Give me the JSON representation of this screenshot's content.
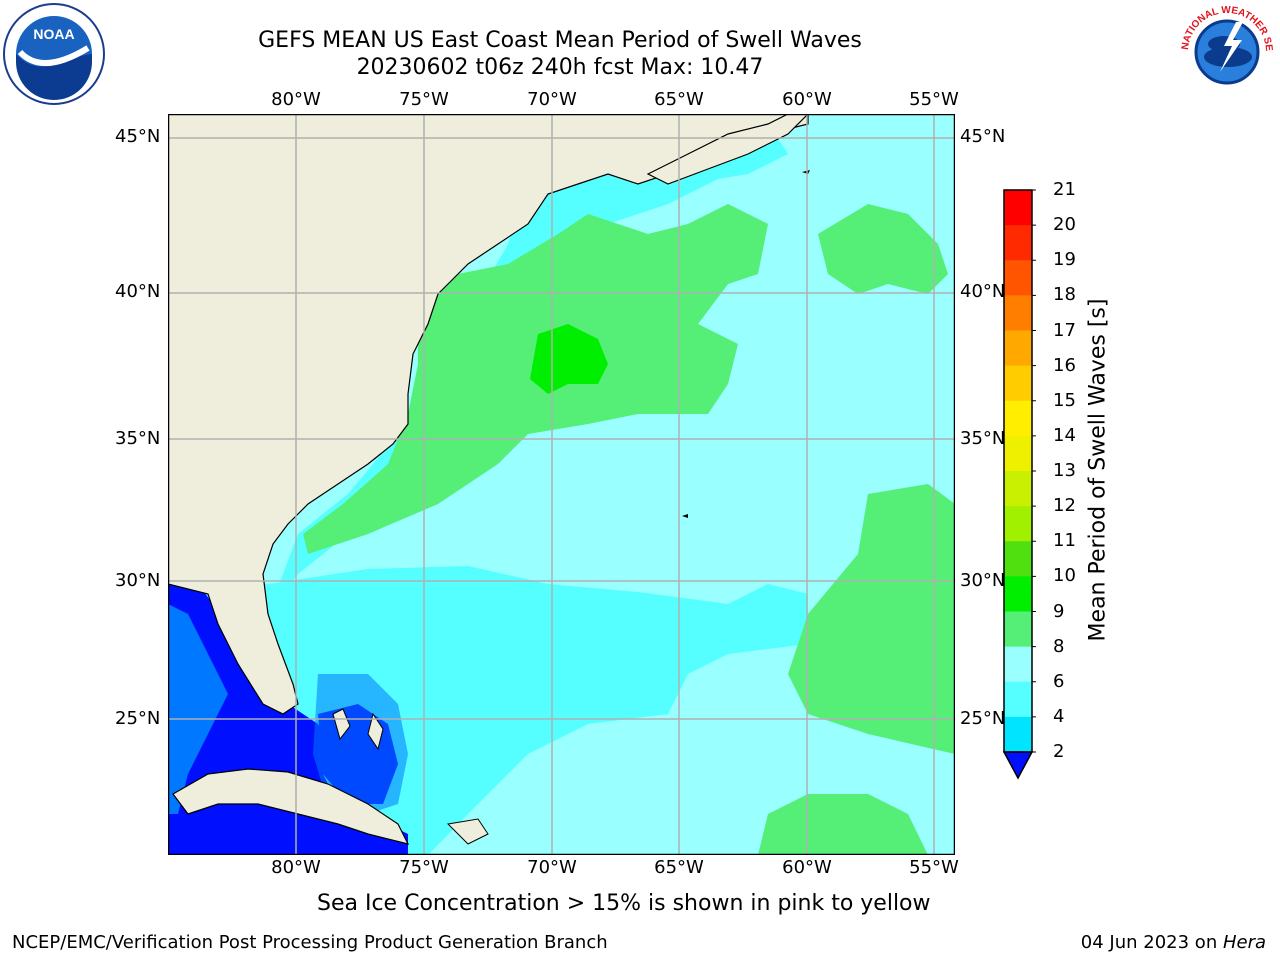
{
  "title_line1": "GEFS MEAN US East Coast Mean Period of Swell Waves",
  "title_line2": "20230602 t06z 240h fcst   Max: 10.47",
  "lon_labels": [
    "80°W",
    "75°W",
    "70°W",
    "65°W",
    "60°W",
    "55°W"
  ],
  "lat_labels": [
    "45°N",
    "40°N",
    "35°N",
    "30°N",
    "25°N"
  ],
  "colorbar": {
    "label": "Mean Period of Swell Waves [s]",
    "ticks": [
      "21",
      "20",
      "19",
      "18",
      "17",
      "16",
      "15",
      "14",
      "13",
      "12",
      "11",
      "10",
      "9",
      "8",
      "6",
      "4",
      "2"
    ],
    "colors": [
      "#ff0000",
      "#ff2a00",
      "#ff5400",
      "#ff7e00",
      "#ffa800",
      "#ffcc00",
      "#ffee00",
      "#eef000",
      "#c8f000",
      "#a0f000",
      "#50e010",
      "#00ee00",
      "#55ee77",
      "#99ffff",
      "#55ffff",
      "#00e4ff",
      "#0078ff",
      "#0010ff"
    ]
  },
  "colors": {
    "land": "#efeedd",
    "period_2_4": "#0078ff",
    "period_below_2": "#0010ff",
    "period_6_8": "#55ffff",
    "period_8_9": "#99ffff",
    "period_9_10": "#55ee77",
    "period_10_11": "#00ee00",
    "grid": "#b0b0b0"
  },
  "logos": {
    "noaa_text": "NOAA",
    "nws_text": "NATIONAL WEATHER SERVICE"
  },
  "note": "Sea Ice Concentration > 15% is shown in pink to yellow",
  "footer_left": "NCEP/EMC/Verification Post Processing Product Generation Branch",
  "footer_right_prefix": "04 Jun 2023 on ",
  "footer_right_host": "Hera"
}
